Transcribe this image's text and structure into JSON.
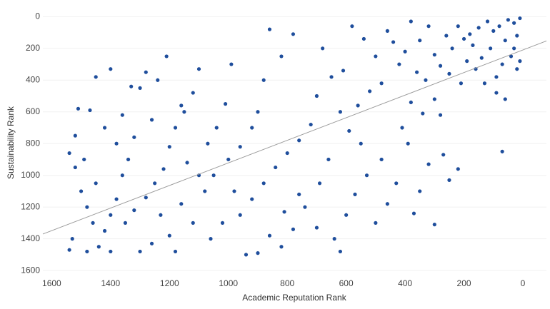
{
  "chart_data": {
    "type": "scatter",
    "xlabel": "Academic Reputation Rank",
    "ylabel": "Sustainability Rank",
    "color": "#1f4e9c",
    "trend_color": "#9a9a9a",
    "grid": true,
    "xlim": [
      1630,
      -80
    ],
    "ylim": [
      -60,
      1640
    ],
    "xticks": [
      1600,
      1400,
      1200,
      1000,
      800,
      600,
      400,
      200,
      0
    ],
    "yticks": [
      0,
      200,
      400,
      600,
      800,
      1000,
      1200,
      1400,
      1600
    ],
    "trendline": {
      "x": [
        1630,
        -80
      ],
      "y": [
        1370,
        153
      ]
    },
    "x": [
      10,
      30,
      50,
      80,
      20,
      60,
      100,
      120,
      150,
      180,
      40,
      70,
      110,
      140,
      170,
      200,
      20,
      90,
      130,
      160,
      190,
      220,
      240,
      260,
      280,
      300,
      30,
      10,
      60,
      90,
      210,
      250,
      70,
      320,
      350,
      380,
      400,
      330,
      360,
      300,
      340,
      280,
      420,
      440,
      460,
      480,
      380,
      300,
      350,
      320,
      390,
      410,
      430,
      270,
      250,
      370,
      220,
      500,
      540,
      580,
      610,
      520,
      560,
      590,
      620,
      480,
      530,
      570,
      600,
      640,
      500,
      460,
      550,
      650,
      680,
      700,
      720,
      660,
      690,
      620,
      700,
      740,
      780,
      820,
      860,
      880,
      900,
      920,
      760,
      800,
      840,
      880,
      920,
      960,
      780,
      820,
      860,
      900,
      960,
      990,
      1010,
      1040,
      1000,
      1050,
      980,
      1060,
      1020,
      940,
      760,
      810,
      1100,
      1120,
      1160,
      1180,
      1200,
      1140,
      1100,
      1080,
      1160,
      1120,
      1200,
      1180,
      1210,
      1240,
      1260,
      1220,
      1250,
      1280,
      1230,
      1260,
      1280,
      1300,
      1150,
      1070,
      1320,
      1340,
      1360,
      1380,
      1400,
      1420,
      1440,
      1460,
      1480,
      1500,
      1520,
      1540,
      1530,
      1510,
      1470,
      1450,
      1400,
      1360,
      1330,
      1420,
      1380,
      1350,
      1400,
      1480,
      1540,
      1520,
      1450,
      1490,
      1320,
      1300
    ],
    "values": [
      10,
      40,
      20,
      60,
      120,
      150,
      90,
      30,
      70,
      110,
      250,
      300,
      200,
      260,
      180,
      140,
      330,
      380,
      420,
      330,
      280,
      60,
      200,
      120,
      310,
      240,
      200,
      280,
      520,
      480,
      420,
      360,
      850,
      60,
      150,
      30,
      220,
      400,
      350,
      520,
      610,
      620,
      300,
      160,
      90,
      420,
      540,
      1310,
      1100,
      930,
      800,
      700,
      1050,
      870,
      1030,
      1240,
      960,
      250,
      140,
      60,
      340,
      470,
      560,
      720,
      600,
      900,
      1000,
      1120,
      1250,
      1400,
      1300,
      1180,
      800,
      380,
      200,
      500,
      680,
      900,
      1050,
      1480,
      1330,
      1200,
      110,
      250,
      80,
      400,
      600,
      700,
      780,
      860,
      950,
      1050,
      1150,
      1250,
      1340,
      1450,
      1380,
      1490,
      820,
      300,
      550,
      700,
      900,
      1000,
      1100,
      1400,
      1300,
      1500,
      1120,
      1230,
      330,
      480,
      560,
      700,
      820,
      920,
      1000,
      1100,
      1180,
      1300,
      1380,
      1480,
      250,
      400,
      650,
      960,
      1050,
      1140,
      1250,
      1430,
      350,
      450,
      600,
      800,
      760,
      900,
      1000,
      1150,
      1250,
      1350,
      1450,
      1300,
      1200,
      1100,
      950,
      860,
      1400,
      580,
      590,
      380,
      330,
      620,
      440,
      700,
      800,
      1300,
      1480,
      1480,
      1470,
      750,
      1050,
      900,
      1220,
      1480
    ]
  }
}
